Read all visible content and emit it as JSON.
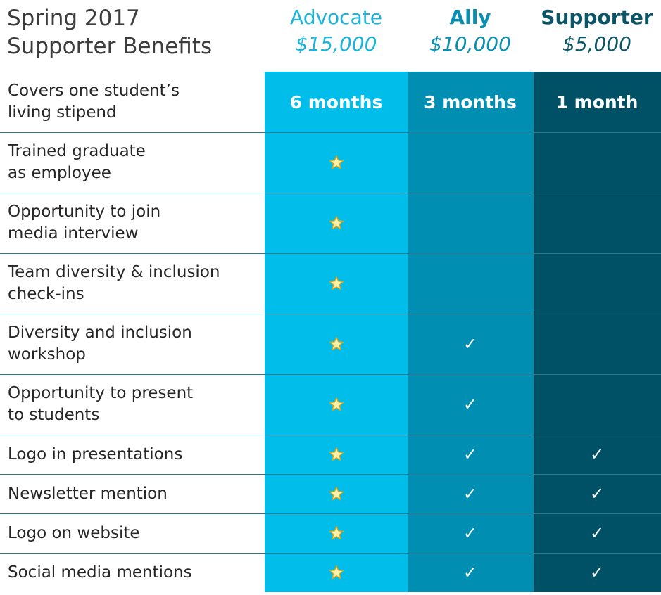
{
  "title": {
    "line1": "Spring 2017",
    "line2": "Supporter Benefits"
  },
  "colors": {
    "advocate": "#00bdea",
    "ally": "#008fb3",
    "supporter": "#005066",
    "star_fill": "#fff2a8",
    "star_stroke": "#e0a10f",
    "label_text": "#262626"
  },
  "tiers": [
    {
      "name": "Advocate",
      "price": "$15,000",
      "duration": "6 months"
    },
    {
      "name": "Ally",
      "price": "$10,000",
      "duration": "3 months"
    },
    {
      "name": "Supporter",
      "price": "$5,000",
      "duration": "1 month"
    }
  ],
  "rows": [
    {
      "label": "Covers one student’s\nliving stipend",
      "marks": [
        "duration",
        "duration",
        "duration"
      ]
    },
    {
      "label": "Trained graduate\nas employee",
      "marks": [
        "star",
        "",
        ""
      ]
    },
    {
      "label": "Opportunity to join\nmedia interview",
      "marks": [
        "star",
        "",
        ""
      ]
    },
    {
      "label": "Team diversity & inclusion\ncheck-ins",
      "marks": [
        "star",
        "",
        ""
      ]
    },
    {
      "label": "Diversity and inclusion\nworkshop",
      "marks": [
        "star",
        "check",
        ""
      ]
    },
    {
      "label": "Opportunity to present\nto students",
      "marks": [
        "star",
        "check",
        ""
      ]
    },
    {
      "label": "Logo in presentations",
      "marks": [
        "star",
        "check",
        "check"
      ]
    },
    {
      "label": "Newsletter mention",
      "marks": [
        "star",
        "check",
        "check"
      ]
    },
    {
      "label": "Logo on website",
      "marks": [
        "star",
        "check",
        "check"
      ]
    },
    {
      "label": "Social media mentions",
      "marks": [
        "star",
        "check",
        "check"
      ]
    }
  ],
  "icons": {
    "star": "star-icon",
    "check": "checkmark-icon"
  },
  "check_glyph": "✓"
}
